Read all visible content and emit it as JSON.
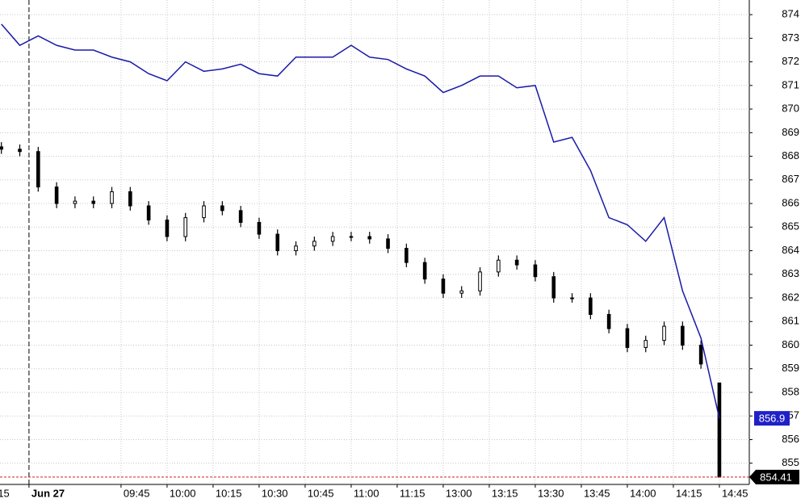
{
  "chart_data": {
    "type": "candlestick",
    "x": [
      0,
      4,
      8,
      12,
      16,
      20,
      24,
      28,
      32,
      36,
      40,
      44,
      48,
      52,
      56,
      60,
      64,
      68,
      72,
      76,
      80,
      84,
      88,
      92,
      96,
      100,
      104,
      108,
      112,
      116,
      120,
      124,
      128,
      132,
      136,
      140,
      144,
      148,
      152,
      156
    ],
    "open": [
      868.4,
      868.3,
      868.2,
      866.7,
      866.0,
      866.1,
      866.0,
      866.5,
      865.9,
      865.3,
      864.6,
      865.4,
      865.9,
      865.7,
      865.2,
      864.7,
      864.0,
      864.2,
      864.4,
      864.6,
      864.6,
      864.5,
      864.1,
      863.5,
      862.8,
      862.2,
      862.3,
      863.1,
      863.6,
      863.4,
      862.9,
      862.0,
      862.0,
      861.3,
      860.7,
      859.9,
      860.2,
      860.8,
      860.0,
      858.4
    ],
    "high": [
      868.6,
      868.5,
      868.4,
      866.9,
      866.3,
      866.3,
      866.7,
      866.7,
      866.1,
      865.5,
      865.6,
      866.1,
      866.1,
      865.9,
      865.4,
      864.9,
      864.4,
      864.6,
      864.8,
      864.8,
      864.8,
      864.7,
      864.3,
      863.7,
      863.0,
      862.5,
      863.3,
      863.8,
      863.8,
      863.6,
      863.1,
      862.2,
      862.2,
      861.5,
      860.9,
      860.4,
      861.0,
      861.0,
      860.2,
      858.4
    ],
    "low": [
      868.1,
      868.0,
      866.5,
      865.8,
      865.8,
      865.8,
      865.8,
      865.7,
      865.1,
      864.4,
      864.4,
      865.2,
      865.5,
      865.0,
      864.5,
      863.8,
      863.8,
      864.0,
      864.2,
      864.4,
      864.3,
      863.9,
      863.3,
      862.6,
      862.0,
      862.0,
      862.1,
      862.9,
      863.2,
      862.7,
      861.8,
      861.8,
      861.1,
      860.5,
      859.7,
      859.7,
      860.0,
      859.8,
      859.0,
      854.41
    ],
    "close": [
      868.3,
      868.2,
      866.7,
      866.0,
      866.1,
      866.0,
      866.5,
      865.9,
      865.3,
      864.6,
      865.4,
      865.9,
      865.7,
      865.2,
      864.7,
      864.0,
      864.2,
      864.4,
      864.6,
      864.6,
      864.5,
      864.1,
      863.5,
      862.8,
      862.2,
      862.3,
      863.1,
      863.6,
      863.4,
      862.9,
      862.0,
      862.0,
      861.3,
      860.7,
      859.9,
      860.2,
      860.8,
      860.0,
      859.2,
      854.41
    ],
    "candle_color": "#000000",
    "line": {
      "color": "#1a1aa8",
      "values": [
        873.6,
        872.7,
        873.1,
        872.7,
        872.5,
        872.5,
        872.2,
        872.0,
        871.5,
        871.2,
        872.0,
        871.6,
        871.7,
        871.9,
        871.5,
        871.4,
        872.2,
        872.2,
        872.2,
        872.7,
        872.2,
        872.1,
        871.7,
        871.4,
        870.7,
        871.0,
        871.4,
        871.4,
        870.9,
        871.0,
        868.6,
        868.8,
        867.4,
        865.4,
        865.1,
        864.4,
        865.4,
        862.3,
        860.3,
        856.9
      ]
    },
    "xlim": [
      -0.3,
      162.5
    ],
    "xticks": [
      {
        "value": -1.3,
        "label": "15"
      },
      {
        "value": 6,
        "label": "Jun 27"
      },
      {
        "value": 26,
        "label": "09:45"
      },
      {
        "value": 36,
        "label": "10:00"
      },
      {
        "value": 46,
        "label": "10:15"
      },
      {
        "value": 56,
        "label": "10:30"
      },
      {
        "value": 66,
        "label": "10:45"
      },
      {
        "value": 76,
        "label": "11:00"
      },
      {
        "value": 86,
        "label": "11:15"
      },
      {
        "value": 96,
        "label": "13:00"
      },
      {
        "value": 106,
        "label": "13:15"
      },
      {
        "value": 116,
        "label": "13:30"
      },
      {
        "value": 126,
        "label": "13:45"
      },
      {
        "value": 136,
        "label": "14:00"
      },
      {
        "value": 146,
        "label": "14:15"
      },
      {
        "value": 156,
        "label": "14:45"
      }
    ],
    "day_break": 6,
    "ylim": [
      854.1,
      874.62
    ],
    "yticks": [
      855,
      856,
      857,
      858,
      859,
      860,
      861,
      862,
      863,
      864,
      865,
      866,
      867,
      868,
      869,
      870,
      871,
      872,
      873,
      874
    ],
    "grid": true
  }
}
